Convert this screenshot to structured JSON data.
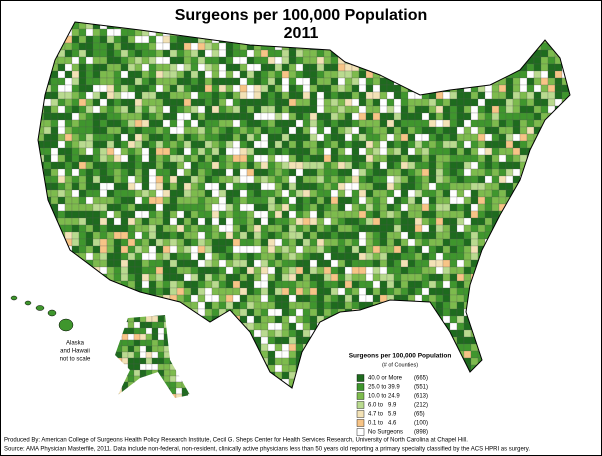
{
  "header": {
    "title": "Surgeons per 100,000 Population",
    "year": "2011"
  },
  "inset_note": [
    "Alaska",
    "and Hawaii",
    "not to scale"
  ],
  "legend": {
    "title": "Surgeons per 100,000 Population",
    "subtitle": "(# of Counties)",
    "items": [
      {
        "label": "40.0 or More",
        "count": "(665)",
        "color": "#1e6b1e"
      },
      {
        "label": "25.0 to 39.9",
        "count": "(551)",
        "color": "#3f962d"
      },
      {
        "label": "10.0 to 24.9",
        "count": "(613)",
        "color": "#7dbb4d"
      },
      {
        "label": "6.0 to   9.9",
        "count": "(212)",
        "color": "#b9da8f"
      },
      {
        "label": "4.7 to   5.9",
        "count": "(65)",
        "color": "#f3e2b6"
      },
      {
        "label": "0.1 to   4.6",
        "count": "(100)",
        "color": "#f7c486"
      },
      {
        "label": "No Surgeons",
        "count": "(898)",
        "color": "#ffffff"
      }
    ]
  },
  "footer": [
    "Produced By: American College of Surgeons Health Policy Research Institute, Cecil G. Sheps Center for Health Services Research, University of North Carolina at Chapel Hill.",
    "Source: AMA Physician Masterfile, 2011.  Data include non-federal, non-resident, clinically active physicians less than 50 years old reporting a primary specialty classified by the ACS HPRI as surgery."
  ]
}
